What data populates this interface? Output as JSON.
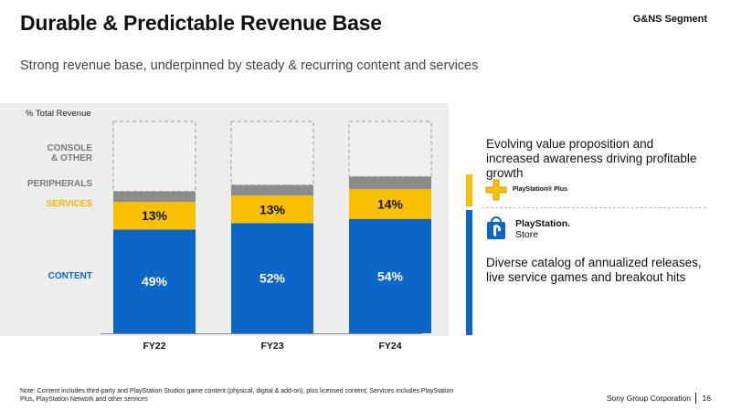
{
  "header": {
    "title": "Durable & Predictable Revenue Base",
    "segment": "G&NS Segment",
    "subtitle": "Strong revenue base, underpinned by steady & recurring content and services"
  },
  "colors": {
    "content": "#0b66c8",
    "services": "#f9c000",
    "peripherals": "#8c8c8c",
    "console_other": "#f0f0f0",
    "panel": "#ededed"
  },
  "chart_data": {
    "type": "bar",
    "stacked": true,
    "ylabel": "% Total Revenue",
    "categories": [
      "FY22",
      "FY23",
      "FY24"
    ],
    "series": [
      {
        "name": "CONTENT",
        "values": [
          49,
          52,
          54
        ],
        "labels": [
          "49%",
          "52%",
          "54%"
        ]
      },
      {
        "name": "SERVICES",
        "values": [
          13,
          13,
          14
        ],
        "labels": [
          "13%",
          "13%",
          "14%"
        ]
      },
      {
        "name": "PERIPHERALS",
        "values": [
          5,
          5,
          6
        ],
        "labels": [
          "",
          "",
          ""
        ]
      },
      {
        "name": "CONSOLE\n& OTHER",
        "values": [
          33,
          30,
          26
        ],
        "labels": [
          "",
          "",
          ""
        ]
      }
    ],
    "ylim": [
      0,
      100
    ],
    "legend_position": "left"
  },
  "segment_labels": {
    "console_line1": "CONSOLE",
    "console_line2": "& OTHER",
    "peripherals": "PERIPHERALS",
    "services": "SERVICES",
    "content": "CONTENT"
  },
  "right_panel": {
    "services_text": "Evolving value proposition and increased awareness driving profitable growth",
    "psplus_label": "PlayStation® Plus",
    "psstore_line1": "PlayStation.",
    "psstore_line2": "Store",
    "content_text": "Diverse catalog of annualized releases, live service games and breakout hits"
  },
  "footer": {
    "note": "Note: Content includes third-party and PlayStation Studios game content (physical, digital & add-on), plus licensed content; Services includes PlayStation Plus, PlayStation Network and other services",
    "company": "Sony Group Corporation",
    "page": "16"
  }
}
